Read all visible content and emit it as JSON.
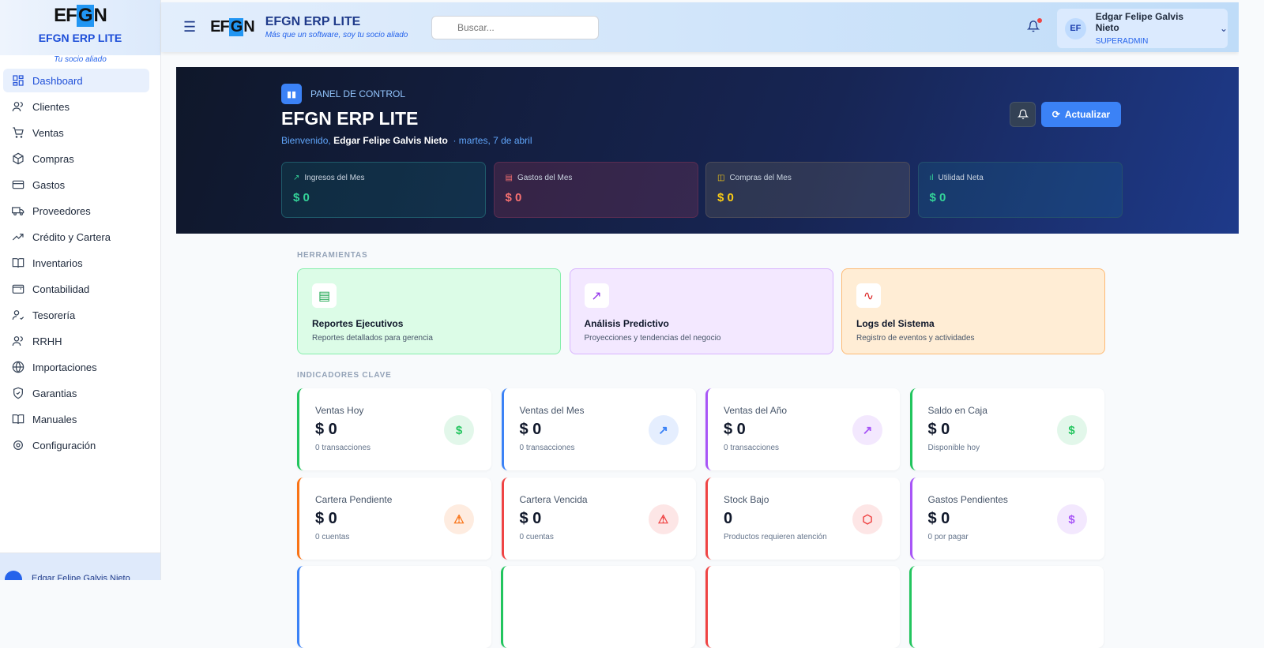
{
  "sidebar": {
    "brand_title": "EFGN ERP LITE",
    "brand_subtitle": "Tu socio aliado",
    "logo_text": "EFGN",
    "logo_sub": "ERP LITE",
    "items": [
      {
        "label": "Dashboard",
        "icon": "dashboard-icon"
      },
      {
        "label": "Clientes",
        "icon": "users-icon"
      },
      {
        "label": "Ventas",
        "icon": "cart-icon"
      },
      {
        "label": "Compras",
        "icon": "box-icon"
      },
      {
        "label": "Gastos",
        "icon": "credit-card-icon"
      },
      {
        "label": "Proveedores",
        "icon": "truck-icon"
      },
      {
        "label": "Crédito y Cartera",
        "icon": "trending-up-icon"
      },
      {
        "label": "Inventarios",
        "icon": "book-icon"
      },
      {
        "label": "Contabilidad",
        "icon": "wallet-icon"
      },
      {
        "label": "Tesorería",
        "icon": "user-check-icon"
      },
      {
        "label": "RRHH",
        "icon": "users-icon"
      },
      {
        "label": "Importaciones",
        "icon": "globe-icon"
      },
      {
        "label": "Garantias",
        "icon": "shield-icon"
      },
      {
        "label": "Manuales",
        "icon": "book-icon"
      },
      {
        "label": "Configuración",
        "icon": "gear-icon"
      }
    ],
    "footer_user": "Edgar Felipe Galvis Nieto"
  },
  "header": {
    "title": "EFGN ERP LITE",
    "tagline": "Más que un software, soy tu socio aliado",
    "search_placeholder": "Buscar...",
    "user_initials": "EF",
    "user_name": "Edgar Felipe Galvis Nieto",
    "user_role": "SUPERADMIN"
  },
  "hero": {
    "tag": "PANEL DE CONTROL",
    "title": "EFGN ERP LITE",
    "welcome": "Bienvenido,",
    "user": "Edgar Felipe Galvis Nieto",
    "date": "· martes, 7 de abril",
    "refresh_label": "Actualizar",
    "stats": [
      {
        "label": "Ingresos del Mes",
        "value": "$ 0",
        "color": "#34d399"
      },
      {
        "label": "Gastos del Mes",
        "value": "$ 0",
        "color": "#f87171"
      },
      {
        "label": "Compras del Mes",
        "value": "$ 0",
        "color": "#facc15"
      },
      {
        "label": "Utilidad Neta",
        "value": "$ 0",
        "color": "#34d399"
      }
    ]
  },
  "tools": {
    "heading": "HERRAMIENTAS",
    "items": [
      {
        "title": "Reportes Ejecutivos",
        "desc": "Reportes detallados para gerencia"
      },
      {
        "title": "Análisis Predictivo",
        "desc": "Proyecciones y tendencias del negocio"
      },
      {
        "title": "Logs del Sistema",
        "desc": "Registro de eventos y actividades"
      }
    ]
  },
  "kpis": {
    "heading": "INDICADORES CLAVE",
    "items": [
      {
        "title": "Ventas Hoy",
        "value": "$ 0",
        "sub": "0 transacciones",
        "color": "#22c55e"
      },
      {
        "title": "Ventas del Mes",
        "value": "$ 0",
        "sub": "0 transacciones",
        "color": "#3b82f6"
      },
      {
        "title": "Ventas del Año",
        "value": "$ 0",
        "sub": "0 transacciones",
        "color": "#a855f7"
      },
      {
        "title": "Saldo en Caja",
        "value": "$ 0",
        "sub": "Disponible hoy",
        "color": "#22c55e"
      },
      {
        "title": "Cartera Pendiente",
        "value": "$ 0",
        "sub": "0 cuentas",
        "color": "#f97316"
      },
      {
        "title": "Cartera Vencida",
        "value": "$ 0",
        "sub": "0 cuentas",
        "color": "#ef4444"
      },
      {
        "title": "Stock Bajo",
        "value": "0",
        "sub": "Productos requieren atención",
        "color": "#ef4444"
      },
      {
        "title": "Gastos Pendientes",
        "value": "$ 0",
        "sub": "0 por pagar",
        "color": "#a855f7"
      }
    ]
  }
}
